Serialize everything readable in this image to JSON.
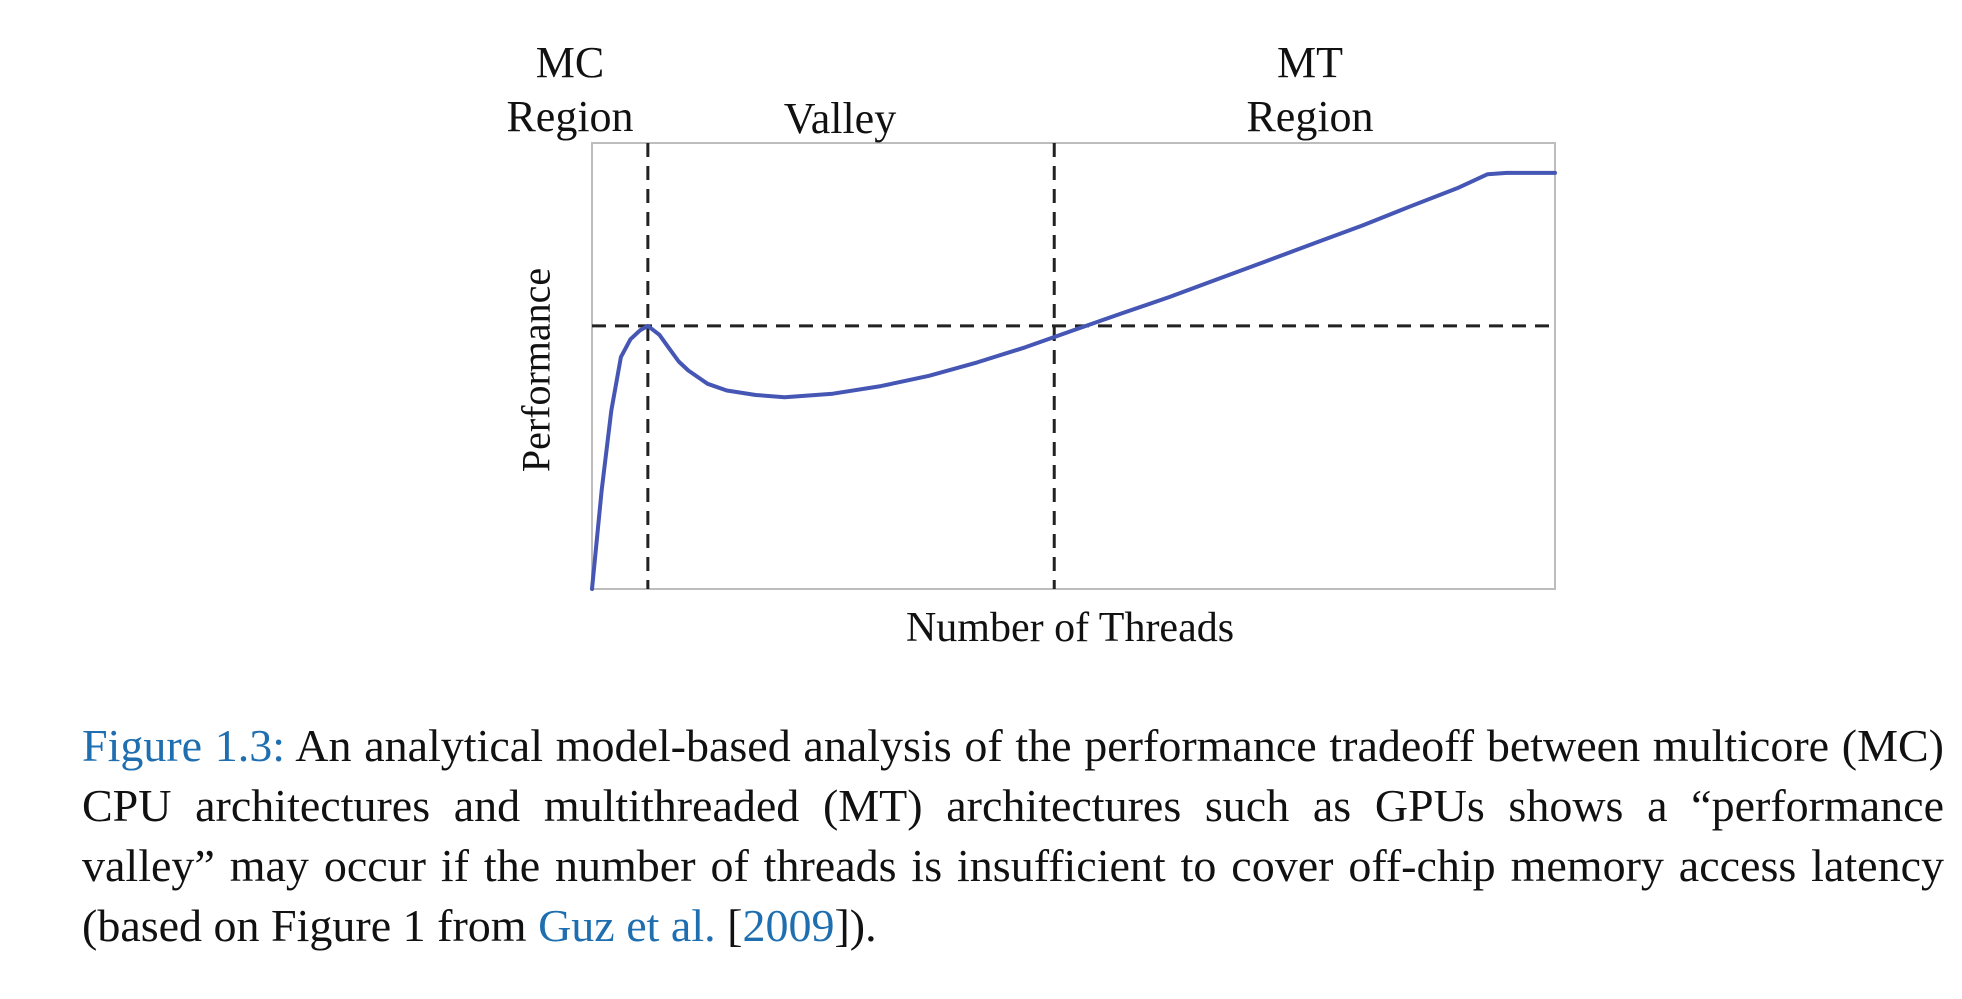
{
  "chart_data": {
    "type": "line",
    "xlabel": "Number of Threads",
    "ylabel": "Performance",
    "region_labels": [
      {
        "id": "mc",
        "lines": [
          "MC",
          "Region"
        ]
      },
      {
        "id": "valley",
        "lines": [
          "Valley"
        ]
      },
      {
        "id": "mt",
        "lines": [
          "MT",
          "Region"
        ]
      }
    ],
    "xlim": [
      0,
      100
    ],
    "ylim": [
      0,
      100
    ],
    "series": [
      {
        "color": "#4656b4",
        "x": [
          0,
          1,
          2,
          3,
          4,
          5,
          5.8,
          7,
          8,
          9,
          10,
          12,
          14,
          17,
          20,
          25,
          30,
          35,
          40,
          45,
          50,
          55,
          60,
          65,
          70,
          75,
          80,
          85,
          90,
          93,
          95,
          100
        ],
        "y": [
          0,
          22,
          40,
          52,
          56,
          58,
          59,
          57,
          54,
          51,
          49,
          46,
          44.5,
          43.5,
          43,
          43.8,
          45.5,
          47.8,
          50.8,
          54.2,
          58,
          61.8,
          65.5,
          69.5,
          73.5,
          77.5,
          81.5,
          85.8,
          90,
          93,
          93.3,
          93.3
        ]
      }
    ],
    "reference_lines": {
      "vertical_x": [
        5.8,
        48
      ],
      "horizontal_y": [
        59
      ]
    },
    "grid": false
  },
  "caption": {
    "label": "Figure 1.3:",
    "text_before": " An analytical model-based analysis of the performance tradeoff between multicore (MC) CPU architectures and multithreaded (MT) architectures such as GPUs shows a “performance valley” may occur if the number of threads is insufficient to cover off-chip memory access latency (based on Figure 1 from ",
    "citation": "Guz et al.",
    "between": " [",
    "year": "2009",
    "after": "])."
  }
}
